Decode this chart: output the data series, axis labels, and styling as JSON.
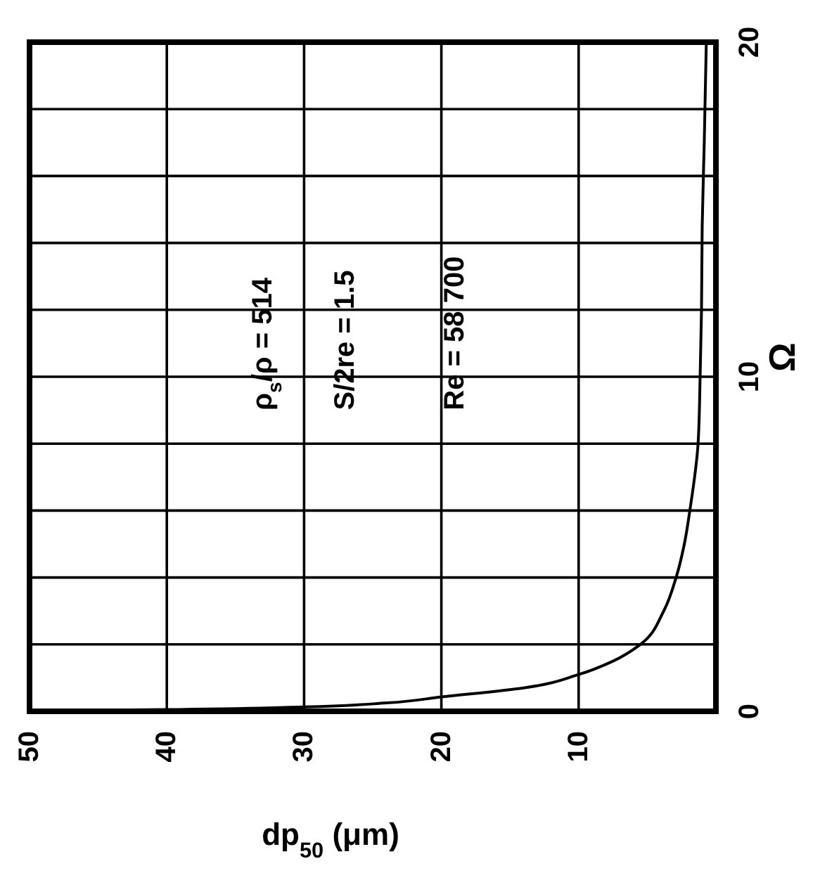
{
  "chart_data": {
    "type": "line",
    "xlabel": "dp$_{50}$ (μm)",
    "ylabel": "Ω",
    "x": [
      48,
      40,
      30,
      24,
      20,
      14,
      10,
      7.5,
      5.5,
      3.8,
      2.9,
      2.3,
      1.9,
      1.3,
      1.15,
      1.05,
      1.0,
      0.85,
      0.7
    ],
    "series": [
      {
        "color": "#000000",
        "values": [
          0.02,
          0.05,
          0.13,
          0.25,
          0.43,
          0.7,
          1.1,
          1.5,
          2.0,
          3.0,
          4.0,
          5.0,
          6.0,
          8.0,
          10.0,
          12.0,
          14.5,
          17.0,
          20.0
        ]
      }
    ],
    "xlim": [
      50,
      0
    ],
    "ylim": [
      0,
      20
    ],
    "xticks": [
      50,
      40,
      30,
      20,
      10,
      {
        "value": 0,
        "label": null
      }
    ],
    "yticks": [
      0,
      {
        "value": 2,
        "label": null
      },
      {
        "value": 4,
        "label": null
      },
      {
        "value": 6,
        "label": null
      },
      {
        "value": 8,
        "label": null
      },
      10,
      {
        "value": 12,
        "label": null
      },
      {
        "value": 14,
        "label": null
      },
      {
        "value": 16,
        "label": null
      },
      {
        "value": 18,
        "label": null
      },
      20
    ],
    "grid": true,
    "marker": "none",
    "line_style": "solid",
    "annotations": [
      "ρ$_{s}$/ρ = 514",
      "S/2re = 1.5",
      "Re = 58 700"
    ]
  }
}
